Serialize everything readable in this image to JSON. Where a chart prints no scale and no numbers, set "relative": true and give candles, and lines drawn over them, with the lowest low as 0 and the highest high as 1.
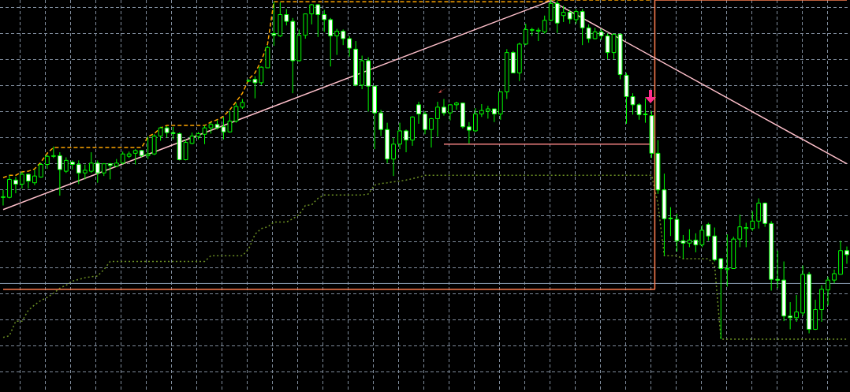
{
  "chart_data": {
    "type": "candlestick",
    "relative": true,
    "grid": true,
    "color": "#00ff00",
    "categories": [
      null,
      null,
      null,
      null,
      null,
      null,
      null,
      null,
      null,
      null,
      null,
      null,
      null,
      null,
      null,
      null,
      null,
      null,
      null,
      null,
      null,
      null,
      null,
      null,
      null,
      null,
      null,
      null,
      null,
      null,
      null,
      null,
      null,
      null,
      null,
      null,
      null,
      null,
      null,
      null,
      null,
      null,
      null,
      null,
      null,
      null,
      null,
      null,
      null,
      null,
      null,
      null,
      null,
      null,
      null,
      null,
      null,
      null,
      null,
      null,
      null,
      null,
      null,
      null,
      null,
      null,
      null,
      null,
      null,
      null,
      null,
      null,
      null,
      null,
      null,
      null,
      null,
      null,
      null,
      null,
      null,
      null,
      null,
      null,
      null,
      null,
      null,
      null,
      null,
      null,
      null,
      null,
      null,
      null,
      null,
      null,
      null,
      null,
      null,
      null,
      null,
      null,
      null,
      null,
      null,
      null,
      null,
      null,
      null,
      null,
      null,
      null,
      null,
      null,
      null,
      null,
      null,
      null,
      null,
      null,
      null,
      null,
      null,
      null,
      null,
      null,
      null,
      null,
      null,
      null,
      null,
      null,
      null,
      null,
      null
    ],
    "ohlc": [
      [
        0.418,
        0.44,
        0.394,
        0.42
      ],
      [
        0.418,
        0.483,
        0.415,
        0.471
      ],
      [
        0.469,
        0.478,
        0.43,
        0.457
      ],
      [
        0.457,
        0.493,
        0.444,
        0.486
      ],
      [
        0.486,
        0.488,
        0.444,
        0.466
      ],
      [
        0.461,
        0.5,
        0.454,
        0.481
      ],
      [
        0.478,
        0.519,
        0.476,
        0.515
      ],
      [
        0.515,
        0.543,
        0.502,
        0.539
      ],
      [
        0.539,
        0.568,
        0.534,
        0.541
      ],
      [
        0.541,
        0.551,
        0.423,
        0.5
      ],
      [
        0.495,
        0.536,
        0.49,
        0.527
      ],
      [
        0.522,
        0.527,
        0.5,
        0.515
      ],
      [
        0.515,
        0.527,
        0.457,
        0.49
      ],
      [
        0.49,
        0.515,
        0.471,
        0.498
      ],
      [
        0.495,
        0.551,
        0.49,
        0.519
      ],
      [
        0.519,
        0.527,
        0.461,
        0.49
      ],
      [
        0.49,
        0.519,
        0.481,
        0.517
      ],
      [
        0.517,
        0.519,
        0.471,
        0.512
      ],
      [
        0.51,
        0.531,
        0.507,
        0.519
      ],
      [
        0.519,
        0.553,
        0.515,
        0.546
      ],
      [
        0.539,
        0.553,
        0.534,
        0.546
      ],
      [
        0.548,
        0.56,
        0.515,
        0.556
      ],
      [
        0.556,
        0.558,
        0.536,
        0.541
      ],
      [
        0.541,
        0.597,
        0.531,
        0.546
      ],
      [
        0.546,
        0.604,
        0.543,
        0.599
      ],
      [
        0.599,
        0.626,
        0.585,
        0.623
      ],
      [
        0.623,
        0.628,
        0.594,
        0.609
      ],
      [
        0.609,
        0.626,
        0.589,
        0.606
      ],
      [
        0.606,
        0.609,
        0.527,
        0.529
      ],
      [
        0.529,
        0.589,
        0.527,
        0.58
      ],
      [
        0.577,
        0.609,
        0.575,
        0.599
      ],
      [
        0.597,
        0.611,
        0.589,
        0.606
      ],
      [
        0.604,
        0.63,
        0.575,
        0.623
      ],
      [
        0.623,
        0.64,
        0.606,
        0.633
      ],
      [
        0.633,
        0.645,
        0.618,
        0.623
      ],
      [
        0.626,
        0.655,
        0.589,
        0.611
      ],
      [
        0.611,
        0.672,
        0.609,
        0.643
      ],
      [
        0.643,
        0.696,
        0.638,
        0.686
      ],
      [
        0.684,
        0.708,
        0.679,
        0.698
      ],
      [
        0.761,
        0.766,
        0.758,
        0.763
      ],
      [
        0.766,
        0.775,
        0.71,
        0.756
      ],
      [
        0.756,
        0.804,
        0.749,
        0.802
      ],
      [
        0.8,
        0.865,
        0.8,
        0.86
      ],
      [
        0.901,
        0.995,
        0.865,
        0.896
      ],
      [
        0.894,
        0.993,
        0.891,
        0.957
      ],
      [
        0.957,
        0.973,
        0.925,
        0.937
      ],
      [
        0.937,
        0.947,
        0.725,
        0.821
      ],
      [
        0.821,
        0.913,
        0.819,
        0.896
      ],
      [
        0.896,
        0.959,
        0.886,
        0.959
      ],
      [
        0.959,
        0.988,
        0.928,
        0.986
      ],
      [
        0.986,
        0.988,
        0.891,
        0.957
      ],
      [
        0.957,
        0.971,
        0.906,
        0.942
      ],
      [
        0.942,
        0.947,
        0.804,
        0.894
      ],
      [
        0.894,
        0.915,
        0.838,
        0.908
      ],
      [
        0.908,
        0.913,
        0.867,
        0.886
      ],
      [
        0.886,
        0.894,
        0.833,
        0.858
      ],
      [
        0.855,
        0.879,
        0.746,
        0.749
      ],
      [
        0.749,
        0.836,
        0.737,
        0.821
      ],
      [
        0.821,
        0.831,
        0.671,
        0.746
      ],
      [
        0.746,
        0.746,
        0.56,
        0.667
      ],
      [
        0.667,
        0.676,
        0.599,
        0.618
      ],
      [
        0.618,
        0.638,
        0.519,
        0.531
      ],
      [
        0.531,
        0.594,
        0.481,
        0.575
      ],
      [
        0.575,
        0.638,
        0.56,
        0.614
      ],
      [
        0.614,
        0.618,
        0.551,
        0.587
      ],
      [
        0.587,
        0.657,
        0.57,
        0.655
      ],
      [
        0.691,
        0.7,
        0.635,
        0.664
      ],
      [
        0.664,
        0.672,
        0.604,
        0.618
      ],
      [
        0.618,
        0.652,
        0.565,
        0.65
      ],
      [
        0.65,
        0.7,
        0.597,
        0.684
      ],
      [
        0.684,
        0.708,
        0.659,
        0.667
      ],
      [
        0.667,
        0.691,
        0.645,
        0.691
      ],
      [
        0.691,
        0.7,
        0.676,
        0.696
      ],
      [
        0.696,
        0.696,
        0.621,
        0.626
      ],
      [
        0.626,
        0.64,
        0.577,
        0.616
      ],
      [
        0.614,
        0.681,
        0.611,
        0.664
      ],
      [
        0.664,
        0.693,
        0.655,
        0.674
      ],
      [
        0.672,
        0.688,
        0.65,
        0.679
      ],
      [
        0.679,
        0.679,
        0.64,
        0.664
      ],
      [
        0.664,
        0.729,
        0.647,
        0.729
      ],
      [
        0.729,
        0.855,
        0.708,
        0.845
      ],
      [
        0.845,
        0.85,
        0.785,
        0.785
      ],
      [
        0.785,
        0.874,
        0.761,
        0.87
      ],
      [
        0.87,
        0.93,
        0.867,
        0.913
      ],
      [
        0.911,
        0.918,
        0.894,
        0.913
      ],
      [
        0.908,
        0.918,
        0.879,
        0.911
      ],
      [
        0.906,
        0.954,
        0.901,
        0.94
      ],
      [
        0.94,
        1,
        0.937,
        0.99
      ],
      [
        0.99,
        0.998,
        0.903,
        0.932
      ],
      [
        0.954,
        0.983,
        0.935,
        0.964
      ],
      [
        0.964,
        0.971,
        0.93,
        0.944
      ],
      [
        0.942,
        0.973,
        0.93,
        0.966
      ],
      [
        0.966,
        0.973,
        0.867,
        0.918
      ],
      [
        0.918,
        0.928,
        0.874,
        0.886
      ],
      [
        0.886,
        0.918,
        0.884,
        0.906
      ],
      [
        0.906,
        0.915,
        0.882,
        0.894
      ],
      [
        0.894,
        0.901,
        0.826,
        0.845
      ],
      [
        0.845,
        0.901,
        0.826,
        0.899
      ],
      [
        0.899,
        0.901,
        0.766,
        0.78
      ],
      [
        0.778,
        0.785,
        0.635,
        0.715
      ],
      [
        0.715,
        0.725,
        0.662,
        0.691
      ],
      [
        0.691,
        0.696,
        0.647,
        0.662
      ],
      [
        0.664,
        0.71,
        0.638,
        0.662
      ],
      [
        0.659,
        0.672,
        0.534,
        0.548
      ],
      [
        0.548,
        0.587,
        0.428,
        0.44
      ],
      [
        0.44,
        0.488,
        0.246,
        0.355
      ],
      [
        0.357,
        0.389,
        0.304,
        0.355
      ],
      [
        0.353,
        0.37,
        0.258,
        0.29
      ],
      [
        0.29,
        0.307,
        0.237,
        0.283
      ],
      [
        0.283,
        0.324,
        0.271,
        0.292
      ],
      [
        0.292,
        0.312,
        0.256,
        0.278
      ],
      [
        0.278,
        0.336,
        0.271,
        0.321
      ],
      [
        0.338,
        0.343,
        0.29,
        0.304
      ],
      [
        0.304,
        0.329,
        0.229,
        0.234
      ],
      [
        0.237,
        0.239,
        0,
        0.208
      ],
      [
        0.205,
        0.309,
        0.155,
        0.208
      ],
      [
        0.208,
        0.302,
        0.208,
        0.295
      ],
      [
        0.295,
        0.367,
        0.271,
        0.331
      ],
      [
        0.326,
        0.343,
        0.271,
        0.329
      ],
      [
        0.326,
        0.377,
        0.319,
        0.348
      ],
      [
        0.348,
        0.415,
        0.326,
        0.401
      ],
      [
        0.401,
        0.403,
        0.331,
        0.341
      ],
      [
        0.341,
        0.348,
        0.143,
        0.176
      ],
      [
        0.176,
        0.261,
        0.15,
        0.174
      ],
      [
        0.174,
        0.229,
        0.053,
        0.068
      ],
      [
        0.068,
        0.109,
        0.029,
        0.063
      ],
      [
        0.063,
        0.13,
        0.051,
        0.08
      ],
      [
        0.077,
        0.217,
        0.068,
        0.191
      ],
      [
        0.191,
        0.198,
        0.017,
        0.029
      ],
      [
        0.029,
        0.116,
        0.027,
        0.087
      ],
      [
        0.087,
        0.159,
        0.051,
        0.147
      ],
      [
        0.145,
        0.184,
        0.099,
        0.174
      ],
      [
        0.174,
        0.205,
        0.164,
        0.193
      ],
      [
        0.191,
        0.29,
        0.191,
        0.261
      ],
      [
        0.261,
        0.273,
        0.222,
        0.249
      ]
    ],
    "series": [
      {
        "type": "line",
        "color": "#ffc0cb",
        "line_style": "solid",
        "values": [
          0.382,
          null,
          null,
          null,
          null,
          null,
          null,
          null,
          null,
          null,
          null,
          null,
          null,
          null,
          null,
          null,
          null,
          null,
          null,
          null,
          null,
          null,
          null,
          null,
          null,
          null,
          null,
          null,
          null,
          null,
          null,
          null,
          null,
          null,
          null,
          null,
          null,
          null,
          null,
          null,
          null,
          null,
          null,
          null,
          null,
          null,
          null,
          null,
          null,
          null,
          null,
          null,
          null,
          null,
          null,
          null,
          null,
          null,
          null,
          null,
          null,
          null,
          null,
          null,
          null,
          null,
          null,
          null,
          null,
          null,
          null,
          null,
          null,
          null,
          null,
          null,
          null,
          null,
          null,
          null,
          null,
          null,
          null,
          null,
          null,
          null,
          null,
          0.998,
          null,
          null,
          null,
          null,
          null,
          null,
          null,
          null,
          null,
          null,
          null,
          null,
          null,
          null,
          null,
          null,
          null,
          null,
          null,
          null,
          null,
          null,
          null,
          null,
          null,
          null,
          null,
          null,
          null,
          null,
          null,
          null,
          null,
          null,
          null,
          null,
          null,
          null,
          null,
          null,
          null,
          null,
          null,
          null,
          null,
          null,
          0.517
        ]
      },
      {
        "type": "line",
        "color": "#f08080",
        "line_style": "solid",
        "values": [
          null,
          null,
          null,
          null,
          null,
          null,
          null,
          null,
          null,
          null,
          null,
          null,
          null,
          null,
          null,
          null,
          null,
          null,
          null,
          null,
          null,
          null,
          null,
          null,
          null,
          null,
          null,
          null,
          null,
          null,
          null,
          null,
          null,
          null,
          null,
          null,
          null,
          null,
          null,
          null,
          null,
          null,
          null,
          null,
          null,
          null,
          null,
          null,
          null,
          null,
          null,
          null,
          null,
          null,
          null,
          null,
          null,
          null,
          null,
          null,
          null,
          null,
          null,
          null,
          null,
          null,
          null,
          null,
          null,
          null,
          0.575,
          null,
          null,
          null,
          null,
          null,
          null,
          null,
          null,
          null,
          null,
          null,
          null,
          null,
          null,
          null,
          null,
          null,
          null,
          null,
          null,
          null,
          null,
          null,
          null,
          null,
          null,
          null,
          null,
          null,
          null,
          null,
          null,
          0.575,
          null,
          null,
          null,
          null,
          null,
          null,
          null,
          null,
          null,
          null,
          null,
          null,
          null,
          null,
          null,
          null,
          null,
          null,
          null,
          null,
          null,
          null,
          null,
          null,
          null,
          null,
          null,
          null,
          null,
          null,
          null
        ]
      },
      {
        "type": "step",
        "color": "#ff7f50",
        "line_style": "solid",
        "values": [
          0.147,
          0.147,
          0.147,
          0.147,
          0.147,
          0.147,
          0.147,
          0.147,
          0.147,
          0.147,
          0.147,
          0.147,
          0.147,
          0.147,
          0.147,
          0.147,
          0.147,
          0.147,
          0.147,
          0.147,
          0.147,
          0.147,
          0.147,
          0.147,
          0.147,
          0.147,
          0.147,
          0.147,
          0.147,
          0.147,
          0.147,
          0.147,
          0.147,
          0.147,
          0.147,
          0.147,
          0.147,
          0.147,
          0.147,
          0.147,
          0.147,
          0.147,
          0.147,
          0.147,
          0.147,
          0.147,
          0.147,
          0.147,
          0.147,
          0.147,
          0.147,
          0.147,
          0.147,
          0.147,
          0.147,
          0.147,
          0.147,
          0.147,
          0.147,
          0.147,
          0.147,
          0.147,
          0.147,
          0.147,
          0.147,
          0.147,
          0.147,
          0.147,
          0.147,
          0.147,
          0.147,
          0.147,
          0.147,
          0.147,
          0.147,
          0.147,
          0.147,
          0.147,
          0.147,
          0.147,
          0.147,
          0.147,
          0.147,
          0.147,
          0.147,
          0.147,
          0.147,
          0.147,
          0.147,
          0.147,
          0.147,
          0.147,
          0.147,
          0.147,
          0.147,
          0.147,
          0.147,
          0.147,
          0.147,
          0.147,
          0.147,
          0.147,
          0.147,
          0.147,
          1,
          1,
          1,
          1,
          1,
          1,
          1,
          1,
          1,
          1,
          1,
          1,
          1,
          1,
          1,
          1,
          1,
          1,
          1,
          1,
          1,
          1,
          1,
          1,
          1,
          1,
          1,
          1,
          1,
          1,
          1
        ]
      },
      {
        "type": "line",
        "color": "#ffa500",
        "line_style": "dashed",
        "values": [
          0.476,
          0.483,
          0.483,
          0.493,
          0.495,
          0.502,
          0.522,
          0.548,
          0.565,
          0.565,
          0.565,
          0.565,
          0.565,
          0.565,
          0.565,
          0.565,
          0.565,
          0.565,
          0.565,
          0.565,
          0.565,
          0.565,
          0.565,
          0.597,
          0.606,
          0.623,
          0.63,
          0.63,
          0.63,
          0.63,
          0.63,
          0.63,
          0.63,
          0.64,
          0.647,
          0.657,
          0.676,
          0.7,
          0.725,
          0.766,
          0.785,
          0.821,
          0.87,
          0.995,
          0.995,
          0.995,
          0.995,
          0.995,
          0.995,
          0.995,
          0.995,
          0.995,
          0.995,
          0.995,
          0.995,
          0.995,
          0.995,
          0.995,
          0.995,
          0.995,
          0.995,
          0.995,
          0.995,
          0.995,
          0.995,
          0.995,
          0.995,
          0.995,
          0.995,
          0.995,
          0.995,
          0.995,
          0.995,
          0.995,
          0.995,
          0.995,
          0.995,
          0.995,
          0.995,
          0.995,
          0.995,
          0.995,
          0.995,
          0.995,
          0.995,
          0.995,
          0.995,
          1,
          1,
          1,
          1,
          1,
          1,
          1,
          1,
          1,
          1,
          1,
          1,
          1,
          1,
          1,
          1,
          1,
          null,
          null,
          null,
          null,
          null,
          null,
          null,
          null,
          null,
          null,
          null,
          null,
          null,
          null,
          null,
          null,
          null,
          null,
          null,
          null,
          null,
          null,
          null,
          null,
          null,
          null,
          null,
          null,
          null,
          null,
          null
        ]
      },
      {
        "type": "line",
        "color": "#6b8e23",
        "line_style": "dotted",
        "values": [
          0.005,
          0.01,
          0.053,
          0.053,
          0.085,
          0.101,
          0.114,
          0.123,
          0.135,
          0.15,
          0.159,
          0.171,
          0.176,
          0.181,
          0.184,
          0.186,
          0.205,
          0.229,
          0.229,
          0.229,
          0.229,
          0.229,
          0.229,
          0.229,
          0.229,
          0.229,
          0.229,
          0.229,
          0.229,
          0.229,
          0.229,
          0.229,
          0.229,
          0.246,
          0.246,
          0.246,
          0.246,
          0.246,
          0.246,
          0.266,
          0.309,
          0.326,
          0.331,
          0.345,
          0.345,
          0.345,
          0.355,
          0.367,
          0.394,
          0.396,
          0.415,
          0.425,
          0.425,
          0.425,
          0.425,
          0.425,
          0.425,
          0.425,
          0.428,
          0.454,
          0.459,
          0.461,
          0.464,
          0.466,
          0.469,
          0.473,
          0.478,
          0.483,
          0.483,
          0.483,
          0.483,
          0.483,
          0.483,
          0.483,
          0.483,
          0.483,
          0.483,
          0.483,
          0.483,
          0.483,
          0.483,
          0.483,
          0.483,
          0.483,
          0.483,
          0.483,
          0.483,
          0.483,
          0.483,
          0.483,
          0.483,
          0.483,
          0.483,
          0.483,
          0.483,
          0.483,
          0.483,
          0.483,
          0.483,
          0.483,
          0.483,
          0.483,
          0.483,
          0.483,
          0.399,
          0.246,
          0.246,
          0.246,
          0.237,
          0.237,
          0.237,
          0.237,
          0.237,
          0.217,
          0,
          0,
          0,
          0,
          0,
          0,
          0,
          0,
          0,
          0,
          0,
          0,
          0,
          0,
          0,
          0,
          0,
          0,
          0,
          0,
          0
        ]
      }
    ],
    "ref_lines": [
      {
        "axis": "y",
        "value": 0.164,
        "color": "#8da0b8"
      }
    ]
  }
}
